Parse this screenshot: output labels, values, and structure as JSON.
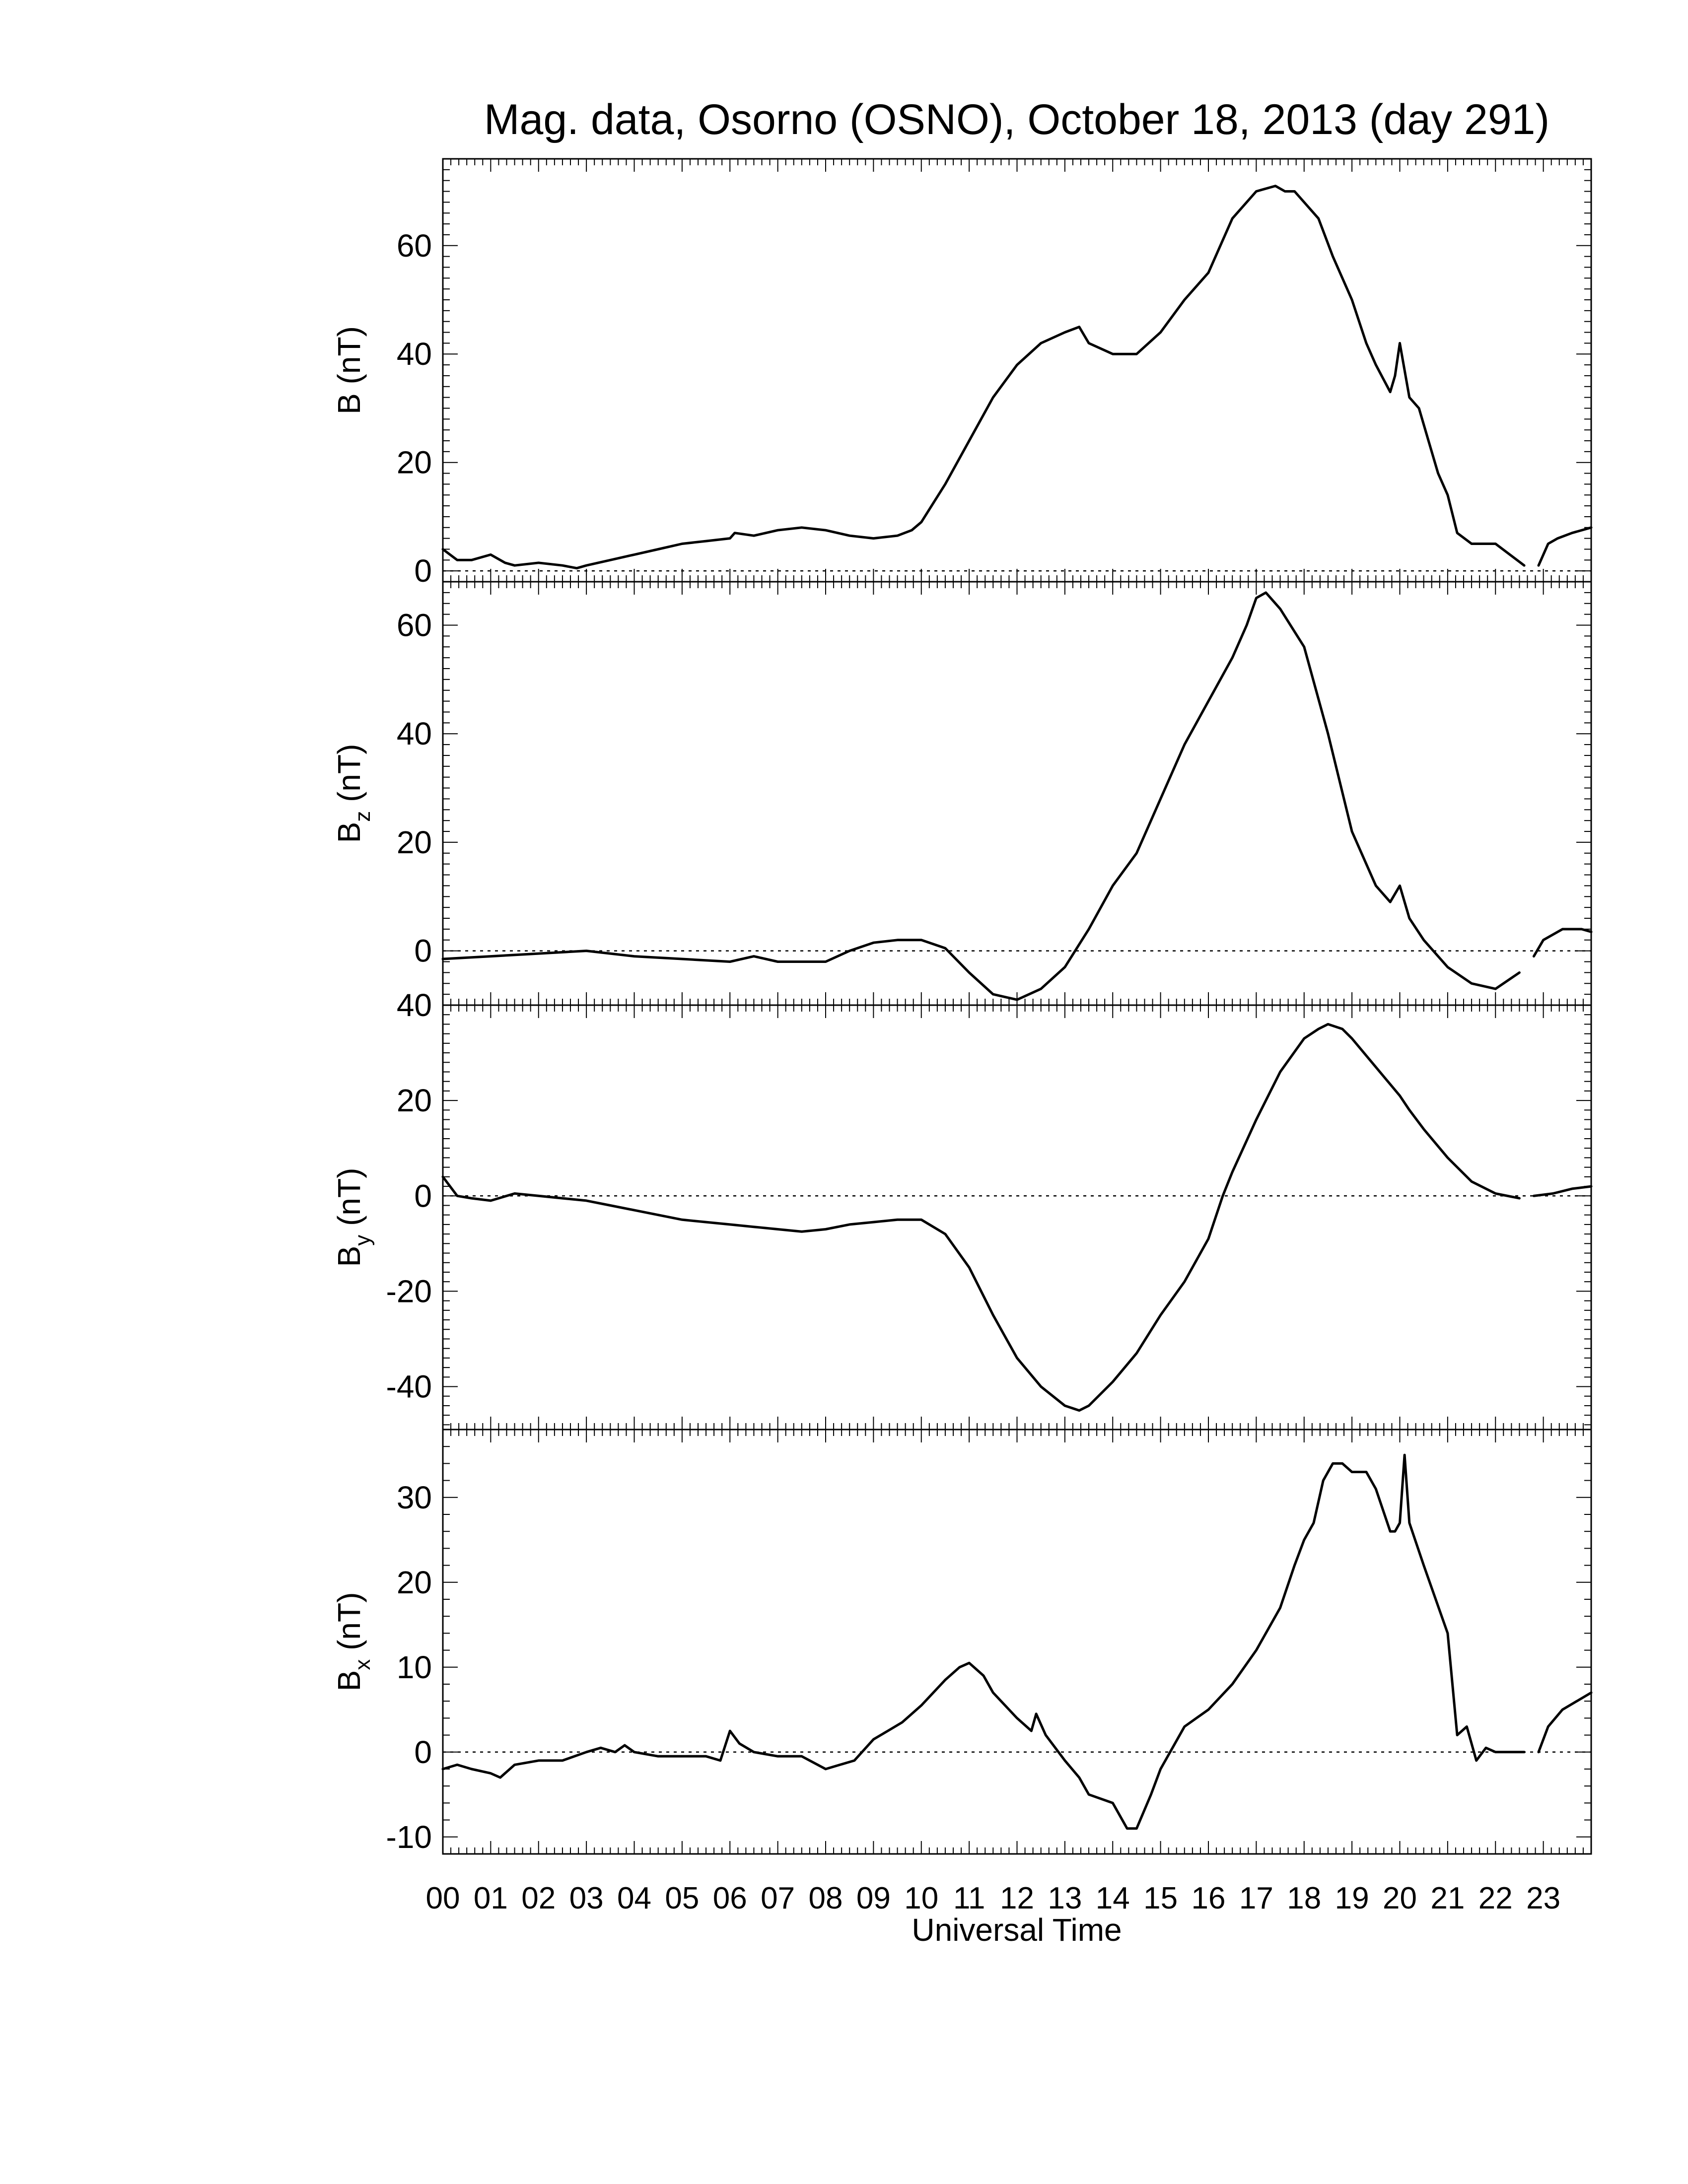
{
  "figure": {
    "title": "Mag. data, Osorno (OSNO), October 18, 2013 (day 291)",
    "xlabel": "Universal Time",
    "x_tick_labels": [
      "00",
      "01",
      "02",
      "03",
      "04",
      "05",
      "06",
      "07",
      "08",
      "09",
      "10",
      "11",
      "12",
      "13",
      "14",
      "15",
      "16",
      "17",
      "18",
      "19",
      "20",
      "21",
      "22",
      "23"
    ],
    "line_color": "#000000"
  },
  "chart_data": [
    {
      "type": "line",
      "panel": "B",
      "ylabel": "B (nT)",
      "ylabel_base": "B",
      "ylabel_sub": "",
      "ylabel_unit": "(nT)",
      "xlim": [
        0,
        24
      ],
      "ylim": [
        -2,
        76
      ],
      "yticks": [
        0,
        20,
        40,
        60
      ],
      "zero_line": true,
      "series": [
        {
          "x": [
            0,
            0.3,
            0.6,
            1,
            1.3,
            1.5,
            2,
            2.5,
            2.8,
            3,
            3.5,
            4,
            4.5,
            5,
            5.5,
            6,
            6.1,
            6.5,
            7,
            7.5,
            8,
            8.5,
            9,
            9.5,
            9.8,
            10,
            10.5,
            11,
            11.5,
            12,
            12.5,
            13,
            13.3,
            13.5,
            14,
            14.5,
            15,
            15.5,
            16,
            16.5,
            17,
            17.4,
            17.6,
            17.8,
            18,
            18.3,
            18.6,
            19,
            19.3,
            19.5,
            19.8,
            19.9,
            20,
            20.2,
            20.4,
            20.6,
            20.8,
            21,
            21.2,
            21.5,
            22,
            22.3,
            22.6
          ],
          "y": [
            4,
            2,
            2,
            3,
            1.5,
            1,
            1.5,
            1,
            0.5,
            1,
            2,
            3,
            4,
            5,
            5.5,
            6,
            7,
            6.5,
            7.5,
            8,
            7.5,
            6.5,
            6,
            6.5,
            7.5,
            9,
            16,
            24,
            32,
            38,
            42,
            44,
            45,
            42,
            40,
            40,
            44,
            50,
            55,
            65,
            70,
            71,
            70,
            70,
            68,
            65,
            58,
            50,
            42,
            38,
            33,
            36,
            42,
            32,
            30,
            24,
            18,
            14,
            7,
            5,
            5,
            3,
            1
          ]
        },
        {
          "x": [
            22.9,
            23.1,
            23.3,
            23.6,
            24
          ],
          "y": [
            1,
            5,
            6,
            7,
            8
          ]
        }
      ]
    },
    {
      "type": "line",
      "panel": "Bz",
      "ylabel": "Bz (nT)",
      "ylabel_base": "B",
      "ylabel_sub": "z",
      "ylabel_unit": "(nT)",
      "xlim": [
        0,
        24
      ],
      "ylim": [
        -10,
        68
      ],
      "yticks": [
        0,
        20,
        40,
        60
      ],
      "zero_line": true,
      "series": [
        {
          "x": [
            0,
            1,
            2,
            3,
            4,
            5,
            6,
            6.5,
            7,
            8,
            8.5,
            9,
            9.5,
            10,
            10.5,
            11,
            11.5,
            12,
            12.5,
            13,
            13.5,
            14,
            14.5,
            15,
            15.5,
            16,
            16.5,
            16.8,
            17,
            17.2,
            17.5,
            18,
            18.5,
            19,
            19.5,
            19.8,
            20,
            20.2,
            20.5,
            21,
            21.5,
            22,
            22.5
          ],
          "y": [
            -1.5,
            -1,
            -0.5,
            0,
            -1,
            -1.5,
            -2,
            -1,
            -2,
            -2,
            0,
            1.5,
            2,
            2,
            0.5,
            -4,
            -8,
            -9,
            -7,
            -3,
            4,
            12,
            18,
            28,
            38,
            46,
            54,
            60,
            65,
            66,
            63,
            56,
            40,
            22,
            12,
            9,
            12,
            6,
            2,
            -3,
            -6,
            -7,
            -4
          ]
        },
        {
          "x": [
            22.8,
            23,
            23.4,
            23.8,
            24
          ],
          "y": [
            -1,
            2,
            4,
            4,
            3.5
          ]
        }
      ]
    },
    {
      "type": "line",
      "panel": "By",
      "ylabel": "By (nT)",
      "ylabel_base": "B",
      "ylabel_sub": "y",
      "ylabel_unit": "(nT)",
      "xlim": [
        0,
        24
      ],
      "ylim": [
        -49,
        40
      ],
      "yticks": [
        -40,
        -20,
        0,
        20,
        40
      ],
      "zero_line": true,
      "series": [
        {
          "x": [
            0,
            0.3,
            0.6,
            1,
            1.5,
            2,
            2.5,
            3,
            3.5,
            4,
            4.5,
            5,
            5.5,
            6,
            6.5,
            7,
            7.5,
            8,
            8.5,
            9,
            9.5,
            10,
            10.5,
            11,
            11.5,
            12,
            12.5,
            13,
            13.3,
            13.5,
            14,
            14.5,
            15,
            15.5,
            16,
            16.3,
            16.5,
            17,
            17.5,
            18,
            18.3,
            18.5,
            18.8,
            19,
            19.5,
            20,
            20.2,
            20.5,
            21,
            21.5,
            22,
            22.5
          ],
          "y": [
            4,
            0,
            -0.5,
            -1,
            0.5,
            0,
            -0.5,
            -1,
            -2,
            -3,
            -4,
            -5,
            -5.5,
            -6,
            -6.5,
            -7,
            -7.5,
            -7,
            -6,
            -5.5,
            -5,
            -5,
            -8,
            -15,
            -25,
            -34,
            -40,
            -44,
            -45,
            -44,
            -39,
            -33,
            -25,
            -18,
            -9,
            0,
            5,
            16,
            26,
            33,
            35,
            36,
            35,
            33,
            27,
            21,
            18,
            14,
            8,
            3,
            0.5,
            -0.5
          ]
        },
        {
          "x": [
            22.8,
            23.2,
            23.6,
            24
          ],
          "y": [
            0,
            0.5,
            1.5,
            2
          ]
        }
      ]
    },
    {
      "type": "line",
      "panel": "Bx",
      "ylabel": "Bx (nT)",
      "ylabel_base": "B",
      "ylabel_sub": "x",
      "ylabel_unit": "(nT)",
      "xlim": [
        0,
        24
      ],
      "ylim": [
        -12,
        38
      ],
      "yticks": [
        -10,
        0,
        10,
        20,
        30
      ],
      "zero_line": true,
      "series": [
        {
          "x": [
            0,
            0.3,
            0.6,
            1,
            1.2,
            1.5,
            2,
            2.5,
            3,
            3.3,
            3.6,
            3.8,
            4,
            4.5,
            5,
            5.5,
            5.8,
            6,
            6.2,
            6.5,
            7,
            7.5,
            8,
            8.3,
            8.6,
            9,
            9.3,
            9.6,
            10,
            10.5,
            10.8,
            11,
            11.3,
            11.5,
            12,
            12.3,
            12.4,
            12.6,
            13,
            13.3,
            13.5,
            14,
            14.3,
            14.5,
            14.8,
            15,
            15.5,
            16,
            16.5,
            17,
            17.5,
            17.8,
            18,
            18.2,
            18.4,
            18.6,
            18.8,
            19,
            19.3,
            19.5,
            19.8,
            19.9,
            20,
            20.1,
            20.2,
            20.5,
            21,
            21.2,
            21.4,
            21.6,
            21.8,
            22,
            22.3,
            22.6
          ],
          "y": [
            -2,
            -1.5,
            -2,
            -2.5,
            -3,
            -1.5,
            -1,
            -1,
            0,
            0.5,
            0,
            0.8,
            0,
            -0.5,
            -0.5,
            -0.5,
            -1,
            2.5,
            1,
            0,
            -0.5,
            -0.5,
            -2,
            -1.5,
            -1,
            1.5,
            2.5,
            3.5,
            5.5,
            8.5,
            10,
            10.5,
            9,
            7,
            4,
            2.5,
            4.5,
            2,
            -1,
            -3,
            -5,
            -6,
            -9,
            -9,
            -5,
            -2,
            3,
            5,
            8,
            12,
            17,
            22,
            25,
            27,
            32,
            34,
            34,
            33,
            33,
            31,
            26,
            26,
            27,
            35,
            27,
            22,
            14,
            2,
            3,
            -1,
            0.5,
            0,
            0,
            0
          ]
        },
        {
          "x": [
            22.9,
            23.1,
            23.4,
            23.7,
            24
          ],
          "y": [
            0,
            3,
            5,
            6,
            7
          ]
        }
      ]
    }
  ]
}
